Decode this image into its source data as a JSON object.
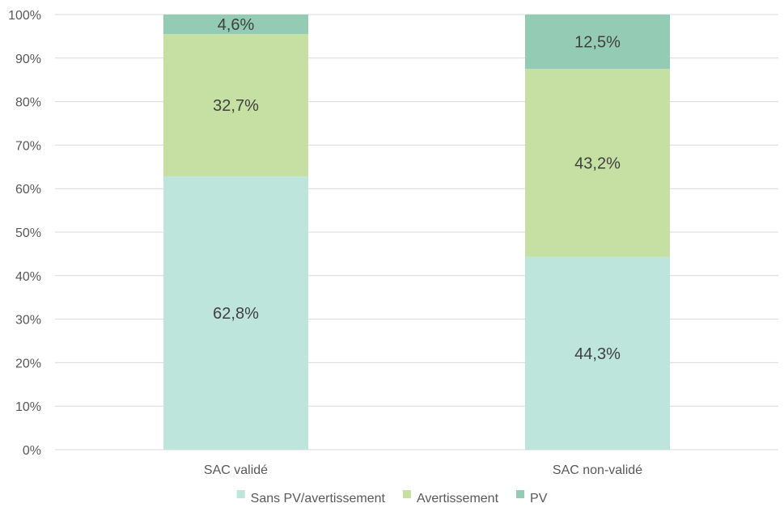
{
  "chart_data": {
    "type": "bar",
    "stacked": true,
    "percent": true,
    "categories": [
      "SAC validé",
      "SAC non-validé"
    ],
    "series": [
      {
        "name": "Sans PV/avertissement",
        "values": [
          62.8,
          44.3
        ],
        "labels": [
          "62,8%",
          "44,3%"
        ],
        "color": "#bde5db"
      },
      {
        "name": "Avertissement",
        "values": [
          32.7,
          43.2
        ],
        "labels": [
          "32,7%",
          "43,2%"
        ],
        "color": "#c6e0a4"
      },
      {
        "name": "PV",
        "values": [
          4.6,
          12.5
        ],
        "labels": [
          "4,6%",
          "12,5%"
        ],
        "color": "#93cbb5"
      }
    ],
    "ylim": [
      0,
      100
    ],
    "yticks": [
      "0%",
      "10%",
      "20%",
      "30%",
      "40%",
      "50%",
      "60%",
      "70%",
      "80%",
      "90%",
      "100%"
    ],
    "grid": true,
    "legend_position": "bottom"
  }
}
